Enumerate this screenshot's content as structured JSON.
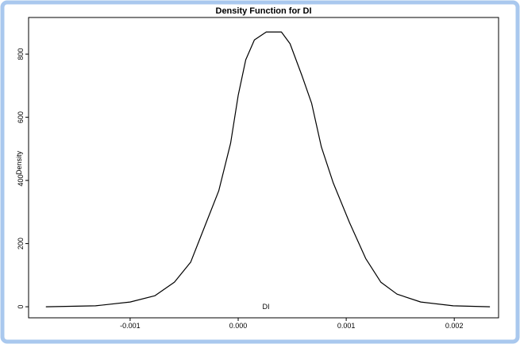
{
  "chart_data": {
    "type": "line",
    "title": "Density Function for DI",
    "xlabel": "DI",
    "ylabel": "Density",
    "x": [
      -0.00178,
      -0.00132,
      -0.001,
      -0.00077,
      -0.00059,
      -0.00044,
      -0.00031,
      -0.00018,
      -7e-05,
      0.0,
      7e-05,
      0.00015,
      0.00026,
      0.0004,
      0.00048,
      0.00059,
      0.00068,
      0.00077,
      0.00088,
      0.00103,
      0.00118,
      0.00132,
      0.00147,
      0.00169,
      0.00199,
      0.00233
    ],
    "series": [
      {
        "color": "#000000",
        "values": [
          0,
          3,
          15,
          35,
          78,
          141,
          254,
          367,
          518,
          669,
          782,
          845,
          870,
          870,
          833,
          732,
          644,
          506,
          392,
          267,
          153,
          78,
          40,
          15,
          3,
          0
        ]
      }
    ],
    "xlim": [
      -0.00194,
      0.00241
    ],
    "ylim": [
      -35,
      916
    ],
    "xticks": [
      -0.001,
      {
        "value": 0,
        "label": "0.000"
      },
      0.001,
      0.002
    ],
    "yticks": [
      0,
      200,
      400,
      600,
      800
    ]
  }
}
